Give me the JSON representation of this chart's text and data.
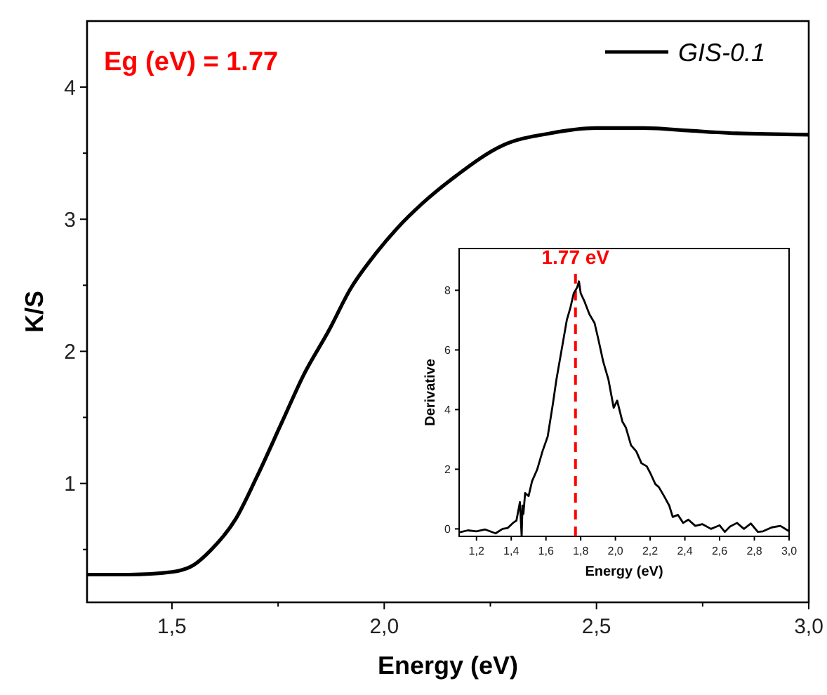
{
  "chart_data": [
    {
      "type": "line",
      "xlabel": "Energy (eV)",
      "ylabel": "K/S",
      "xlim": [
        1.3,
        3.0
      ],
      "ylim": [
        0.1,
        4.5
      ],
      "xticks": [
        {
          "value": 1.5,
          "label": "1,5"
        },
        {
          "value": 1.75,
          "label": null
        },
        {
          "value": 2.0,
          "label": "2,0"
        },
        {
          "value": 2.25,
          "label": null
        },
        {
          "value": 2.5,
          "label": "2,5"
        },
        {
          "value": 2.75,
          "label": null
        },
        {
          "value": 3.0,
          "label": "3,0"
        }
      ],
      "yticks": [
        {
          "value": 0.5,
          "label": null
        },
        1,
        {
          "value": 1.5,
          "label": null
        },
        2,
        {
          "value": 2.5,
          "label": null
        },
        3,
        {
          "value": 3.5,
          "label": null
        },
        4
      ],
      "grid": false,
      "legend": "top right",
      "line_style": "solid",
      "marker": "none",
      "annotations": [
        "Eg (eV) = 1.77"
      ],
      "series": [
        {
          "name": "GIS-0.1",
          "color": "#000000",
          "x": [
            1.3,
            1.4,
            1.5,
            1.55,
            1.59,
            1.65,
            1.7,
            1.76,
            1.81,
            1.87,
            1.92,
            1.98,
            2.03,
            2.09,
            2.17,
            2.28,
            2.39,
            2.5,
            2.61,
            2.72,
            2.83,
            3.0
          ],
          "values": [
            0.31,
            0.31,
            0.33,
            0.38,
            0.49,
            0.73,
            1.05,
            1.47,
            1.82,
            2.16,
            2.47,
            2.74,
            2.93,
            3.12,
            3.33,
            3.56,
            3.65,
            3.69,
            3.69,
            3.67,
            3.65,
            3.64
          ]
        }
      ]
    },
    {
      "type": "line",
      "xlabel": "Energy (eV)",
      "ylabel": "Derivative",
      "xlim": [
        1.1,
        3.0
      ],
      "ylim": [
        -0.25,
        9.4
      ],
      "xticks": [
        {
          "value": 1.2,
          "label": "1,2"
        },
        {
          "value": 1.4,
          "label": "1,4"
        },
        {
          "value": 1.6,
          "label": "1,6"
        },
        {
          "value": 1.8,
          "label": "1,8"
        },
        {
          "value": 2.0,
          "label": "2,0"
        },
        {
          "value": 2.2,
          "label": "2,2"
        },
        {
          "value": 2.4,
          "label": "2,4"
        },
        {
          "value": 2.6,
          "label": "2,6"
        },
        {
          "value": 2.8,
          "label": "2,8"
        },
        {
          "value": 3.0,
          "label": "3,0"
        }
      ],
      "yticks": [
        0,
        2,
        4,
        6,
        8
      ],
      "grid": false,
      "line_style": "solid",
      "marker": "none",
      "ref_lines": [
        {
          "axis": "x",
          "value": 1.77,
          "label": "1.77 eV",
          "color": "#ff0000",
          "line_style": "dashed"
        }
      ],
      "series": [
        {
          "color": "#000000",
          "x": [
            1.1,
            1.15,
            1.2,
            1.25,
            1.31,
            1.35,
            1.38,
            1.41,
            1.43,
            1.45,
            1.46,
            1.465,
            1.47,
            1.48,
            1.5,
            1.52,
            1.55,
            1.58,
            1.61,
            1.64,
            1.66,
            1.69,
            1.72,
            1.74,
            1.76,
            1.78,
            1.79,
            1.8,
            1.82,
            1.85,
            1.88,
            1.9,
            1.93,
            1.96,
            1.99,
            2.01,
            2.04,
            2.06,
            2.09,
            2.12,
            2.15,
            2.18,
            2.2,
            2.23,
            2.25,
            2.28,
            2.31,
            2.33,
            2.36,
            2.39,
            2.42,
            2.46,
            2.5,
            2.55,
            2.6,
            2.63,
            2.66,
            2.7,
            2.74,
            2.78,
            2.82,
            2.85,
            2.9,
            2.95,
            3.0
          ],
          "values": [
            -0.12,
            -0.05,
            -0.08,
            -0.02,
            -0.15,
            0.0,
            0.03,
            0.2,
            0.28,
            0.9,
            -0.24,
            0.78,
            0.5,
            1.2,
            1.1,
            1.6,
            2.0,
            2.6,
            3.1,
            4.2,
            5.0,
            6.0,
            7.0,
            7.4,
            7.9,
            8.1,
            8.3,
            7.9,
            7.65,
            7.2,
            6.9,
            6.4,
            5.6,
            5.0,
            4.06,
            4.3,
            3.6,
            3.4,
            2.8,
            2.6,
            2.2,
            2.1,
            1.88,
            1.5,
            1.4,
            1.1,
            0.78,
            0.4,
            0.47,
            0.2,
            0.31,
            0.1,
            0.16,
            0.0,
            0.12,
            -0.1,
            0.08,
            0.2,
            0.0,
            0.18,
            -0.1,
            -0.08,
            0.05,
            0.1,
            -0.08
          ]
        }
      ]
    }
  ]
}
